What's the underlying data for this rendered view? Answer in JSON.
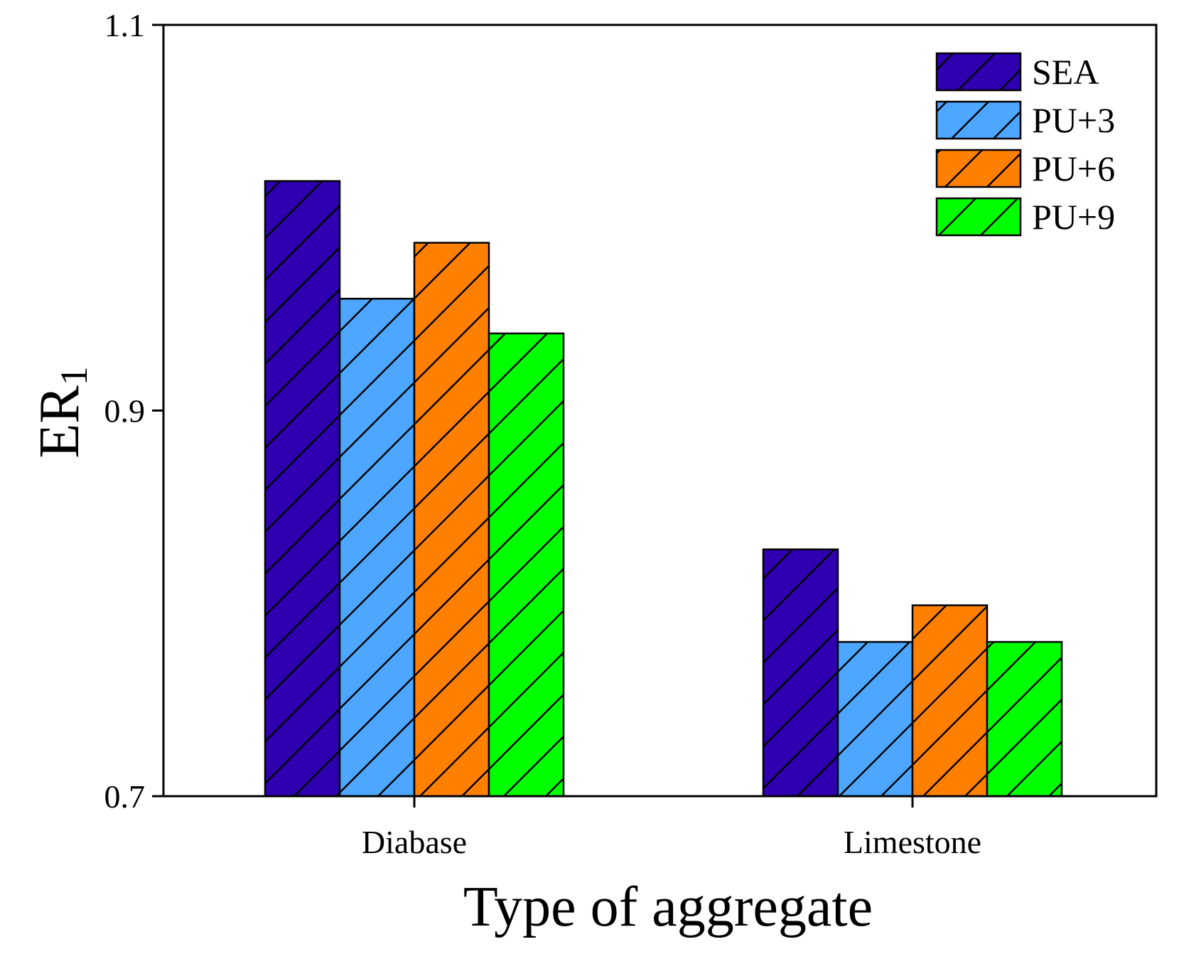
{
  "chart_data": {
    "type": "bar",
    "xlabel": "Type of aggregate",
    "ylabel_main": "ER",
    "ylabel_sub": "1",
    "categories": [
      "Diabase",
      "Limestone"
    ],
    "ylim": [
      0.7,
      1.1
    ],
    "yticks": [
      0.7,
      0.9,
      1.1
    ],
    "ytick_labels": [
      "0.7",
      "0.9",
      "1.1"
    ],
    "series": [
      {
        "name": "SEA",
        "color": "#2e00b0",
        "values": [
          1.019,
          0.828
        ]
      },
      {
        "name": "PU+3",
        "color": "#4da6ff",
        "values": [
          0.958,
          0.78
        ]
      },
      {
        "name": "PU+6",
        "color": "#ff8000",
        "values": [
          0.987,
          0.799
        ]
      },
      {
        "name": "PU+9",
        "color": "#00ff00",
        "values": [
          0.94,
          0.78
        ]
      }
    ],
    "legend_position": "top-right",
    "grid": false,
    "hatch": "diagonal"
  }
}
